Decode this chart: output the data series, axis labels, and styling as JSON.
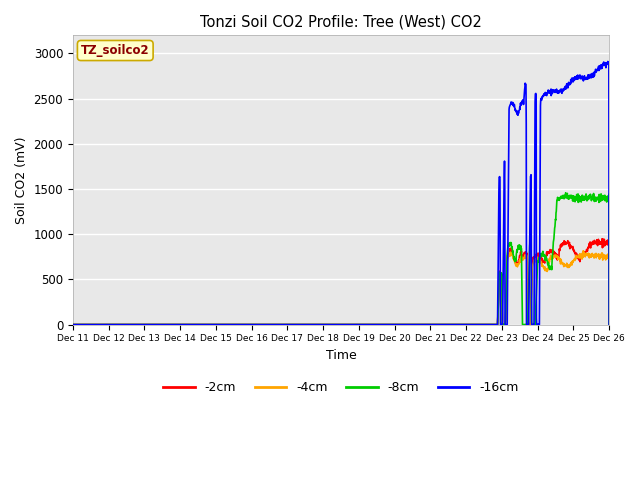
{
  "title": "Tonzi Soil CO2 Profile: Tree (West) CO2",
  "ylabel": "Soil CO2 (mV)",
  "xlabel": "Time",
  "watermark": "TZ_soilco2",
  "ylim": [
    0,
    3200
  ],
  "yticks": [
    0,
    500,
    1000,
    1500,
    2000,
    2500,
    3000
  ],
  "fig_facecolor": "#ffffff",
  "plot_facecolor": "#e8e8e8",
  "series_colors": {
    "-2cm": "#ff0000",
    "-4cm": "#ffa500",
    "-8cm": "#00cc00",
    "-16cm": "#0000ff"
  },
  "line_width": 1.2,
  "xlim_start": 11,
  "xlim_end": 26
}
